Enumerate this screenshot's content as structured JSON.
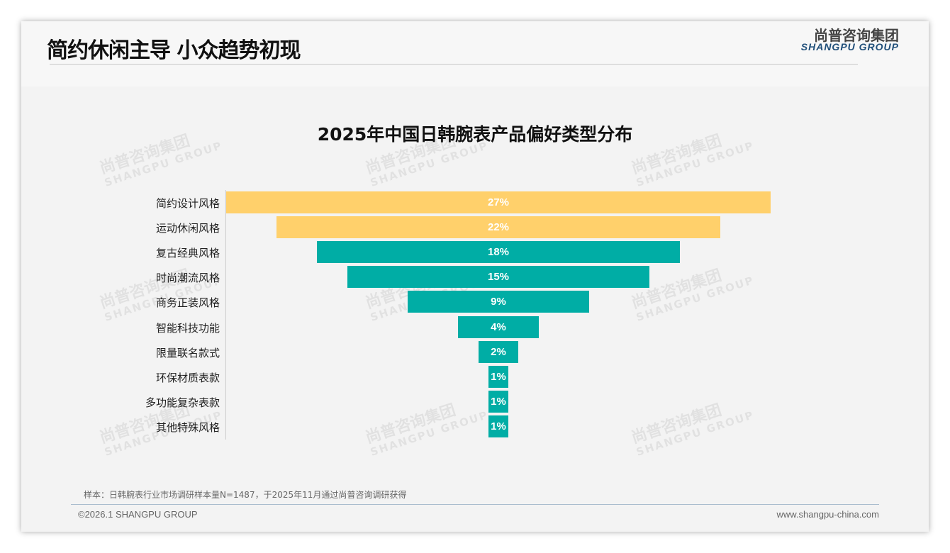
{
  "header": {
    "title": "简约休闲主导 小众趋势初现",
    "logo_cn": "尚普咨询集团",
    "logo_en": "SHANGPU GROUP"
  },
  "watermark": {
    "cn": "尚普咨询集团",
    "en": "SHANGPU GROUP"
  },
  "chart_data": {
    "type": "bar",
    "orientation": "horizontal-funnel",
    "title": "2025年中国日韩腕表产品偏好类型分布",
    "categories": [
      "简约设计风格",
      "运动休闲风格",
      "复古经典风格",
      "时尚潮流风格",
      "商务正装风格",
      "智能科技功能",
      "限量联名款式",
      "环保材质表款",
      "多功能复杂表款",
      "其他特殊风格"
    ],
    "values": [
      27,
      22,
      18,
      15,
      9,
      4,
      2,
      1,
      1,
      1
    ],
    "unit": "%",
    "colors": [
      "#FFD06B",
      "#FFD06B",
      "#00ADA5",
      "#00ADA5",
      "#00ADA5",
      "#00ADA5",
      "#00ADA5",
      "#00ADA5",
      "#00ADA5",
      "#00ADA5"
    ],
    "xlim": [
      0,
      27
    ]
  },
  "footer": {
    "note": "样本：日韩腕表行业市场调研样本量N=1487，于2025年11月通过尚普咨询调研获得",
    "copyright": "©2026.1 SHANGPU GROUP",
    "url": "www.shangpu-china.com"
  }
}
